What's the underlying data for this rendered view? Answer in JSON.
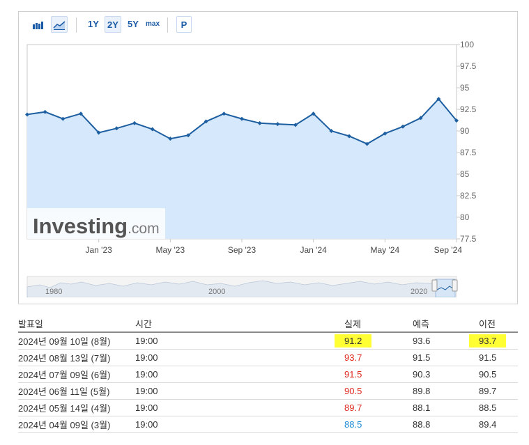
{
  "toolbar": {
    "bar_chart_icon": "bar-chart-icon",
    "area_chart_icon": "area-chart-icon",
    "range_buttons": [
      "1Y",
      "2Y",
      "5Y",
      "max"
    ],
    "selected_range": "2Y",
    "p_button": "P"
  },
  "watermark": {
    "brand": "Investing",
    "suffix": ".com"
  },
  "navigator": {
    "labels": [
      "1980",
      "2000",
      "2020"
    ]
  },
  "chart_data": {
    "type": "area",
    "x": [
      "2022-09",
      "2022-10",
      "2022-11",
      "2022-12",
      "2023-01",
      "2023-02",
      "2023-03",
      "2023-04",
      "2023-05",
      "2023-06",
      "2023-07",
      "2023-08",
      "2023-09",
      "2023-10",
      "2023-11",
      "2023-12",
      "2024-01",
      "2024-02",
      "2024-03",
      "2024-04",
      "2024-05",
      "2024-06",
      "2024-07",
      "2024-08",
      "2024-09"
    ],
    "values": [
      91.9,
      92.2,
      91.4,
      92.0,
      89.8,
      90.3,
      90.9,
      90.2,
      89.1,
      89.5,
      91.1,
      92.0,
      91.4,
      90.9,
      90.8,
      90.7,
      92.0,
      90.0,
      89.4,
      88.5,
      89.7,
      90.5,
      91.5,
      93.7,
      91.2
    ],
    "x_ticks": [
      "Jan '23",
      "May '23",
      "Sep '23",
      "Jan '24",
      "May '24",
      "Sep '24"
    ],
    "y_ticks": [
      "100",
      "97.5",
      "95",
      "92.5",
      "90",
      "87.5",
      "85",
      "82.5",
      "80",
      "77.5"
    ],
    "ylim": [
      77.5,
      100
    ],
    "grid": false,
    "line_color": "#1d5fa0",
    "fill_color": "#d6e8fb"
  },
  "table": {
    "headers": {
      "date": "발표일",
      "time": "시간",
      "actual": "실제",
      "forecast": "예측",
      "previous": "이전"
    },
    "rows": [
      {
        "date": "2024년 09월 10일 (8월)",
        "time": "19:00",
        "actual": "91.2",
        "forecast": "93.6",
        "previous": "93.7",
        "actual_color": "#333333",
        "highlight": true
      },
      {
        "date": "2024년 08월 13일 (7월)",
        "time": "19:00",
        "actual": "93.7",
        "forecast": "91.5",
        "previous": "91.5",
        "actual_color": "#e0261f",
        "highlight": false
      },
      {
        "date": "2024년 07월 09일 (6월)",
        "time": "19:00",
        "actual": "91.5",
        "forecast": "90.3",
        "previous": "90.5",
        "actual_color": "#e0261f",
        "highlight": false
      },
      {
        "date": "2024년 06월 11일 (5월)",
        "time": "19:00",
        "actual": "90.5",
        "forecast": "89.8",
        "previous": "89.7",
        "actual_color": "#e0261f",
        "highlight": false
      },
      {
        "date": "2024년 05월 14일 (4월)",
        "time": "19:00",
        "actual": "89.7",
        "forecast": "88.1",
        "previous": "88.5",
        "actual_color": "#e0261f",
        "highlight": false
      },
      {
        "date": "2024년 04월 09일 (3월)",
        "time": "19:00",
        "actual": "88.5",
        "forecast": "88.8",
        "previous": "89.4",
        "actual_color": "#1a8ad4",
        "highlight": false
      }
    ]
  }
}
